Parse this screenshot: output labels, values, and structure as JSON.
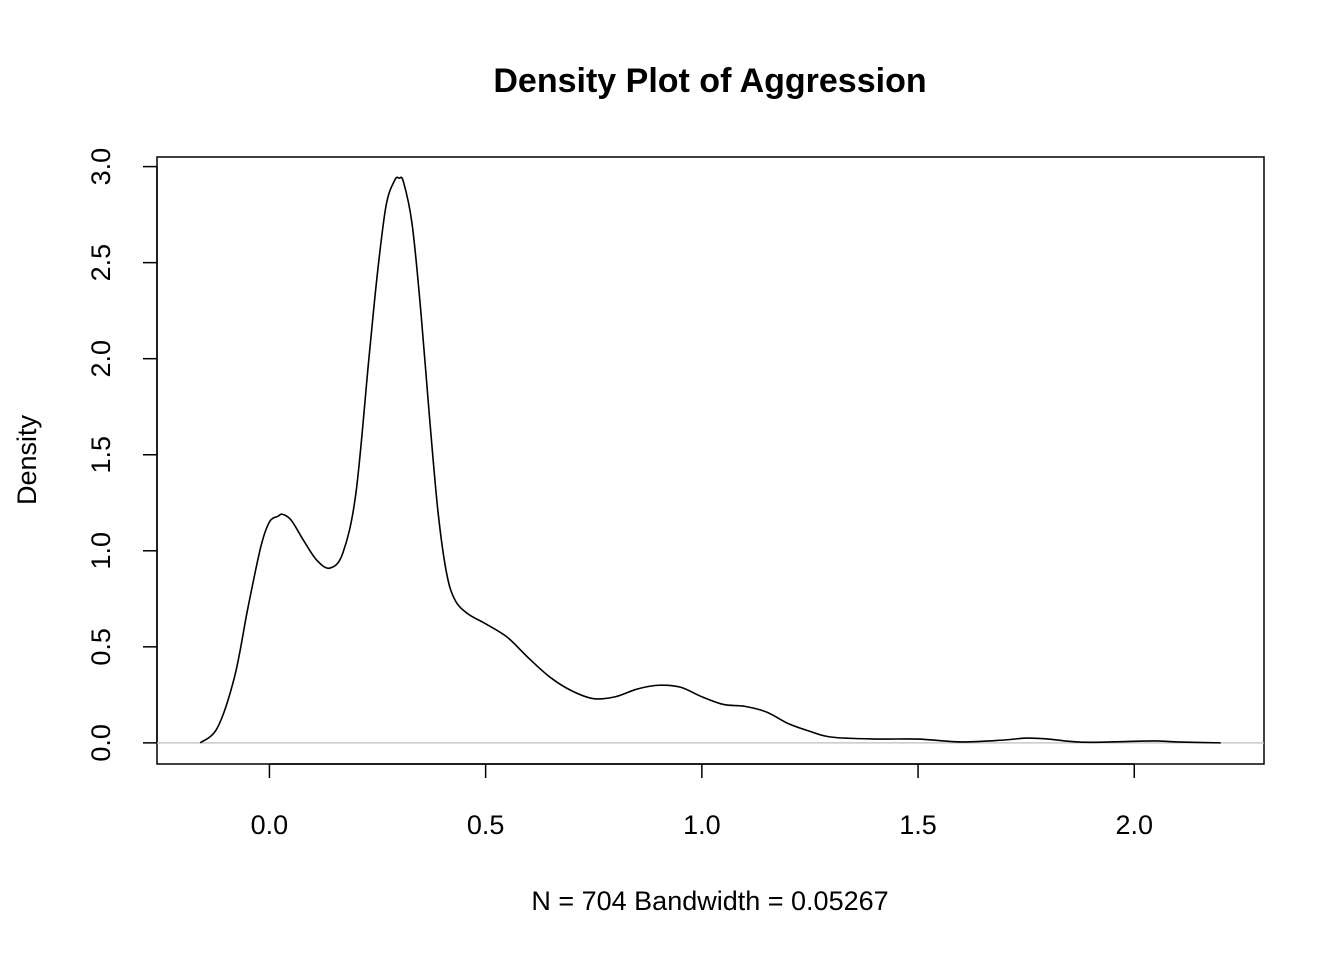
{
  "chart_data": {
    "type": "line",
    "title": "Density Plot of Aggression",
    "xlabel": "N = 704   Bandwidth = 0.05267",
    "ylabel": "Density",
    "xlim": [
      -0.26,
      2.3
    ],
    "ylim": [
      -0.11,
      3.05
    ],
    "x_ticks": [
      0.0,
      0.5,
      1.0,
      1.5,
      2.0
    ],
    "x_tick_labels": [
      "0.0",
      "0.5",
      "1.0",
      "1.5",
      "2.0"
    ],
    "y_ticks": [
      0.0,
      0.5,
      1.0,
      1.5,
      2.0,
      2.5,
      3.0
    ],
    "y_tick_labels": [
      "0.0",
      "0.5",
      "1.0",
      "1.5",
      "2.0",
      "2.5",
      "3.0"
    ],
    "zero_line": true,
    "grid": false,
    "legend": "none",
    "series": [
      {
        "x": [
          -0.16,
          -0.12,
          -0.08,
          -0.05,
          -0.02,
          0.0,
          0.02,
          0.03,
          0.05,
          0.08,
          0.11,
          0.14,
          0.17,
          0.2,
          0.23,
          0.25,
          0.27,
          0.29,
          0.3,
          0.31,
          0.33,
          0.35,
          0.37,
          0.39,
          0.41,
          0.43,
          0.46,
          0.5,
          0.55,
          0.6,
          0.65,
          0.7,
          0.75,
          0.8,
          0.85,
          0.9,
          0.95,
          1.0,
          1.05,
          1.1,
          1.15,
          1.2,
          1.25,
          1.3,
          1.4,
          1.5,
          1.6,
          1.7,
          1.75,
          1.8,
          1.85,
          1.9,
          2.0,
          2.05,
          2.1,
          2.2
        ],
        "y": [
          0.0,
          0.08,
          0.35,
          0.7,
          1.02,
          1.15,
          1.18,
          1.19,
          1.16,
          1.05,
          0.95,
          0.91,
          0.99,
          1.3,
          2.0,
          2.45,
          2.8,
          2.93,
          2.94,
          2.92,
          2.7,
          2.25,
          1.7,
          1.2,
          0.88,
          0.74,
          0.67,
          0.62,
          0.55,
          0.44,
          0.34,
          0.27,
          0.23,
          0.24,
          0.28,
          0.3,
          0.29,
          0.24,
          0.2,
          0.19,
          0.16,
          0.1,
          0.06,
          0.03,
          0.02,
          0.02,
          0.005,
          0.015,
          0.025,
          0.02,
          0.008,
          0.003,
          0.008,
          0.01,
          0.005,
          0.0
        ]
      }
    ]
  }
}
